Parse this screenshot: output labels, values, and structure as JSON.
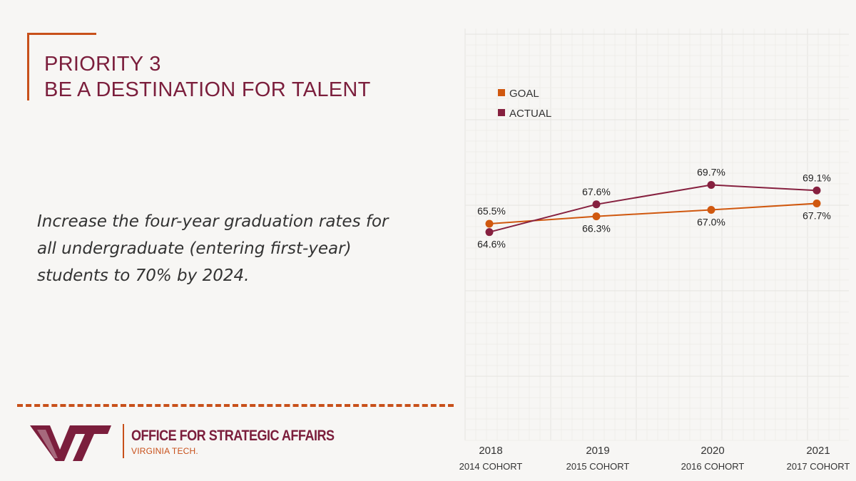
{
  "header": {
    "priority": "PRIORITY 3",
    "subtitle": "BE A DESTINATION FOR TALENT"
  },
  "goal_statement": "Increase the four-year graduation rates for all undergraduate (entering first-year) students to 70% by 2024.",
  "footer": {
    "office": "OFFICE FOR STRATEGIC AFFAIRS",
    "org": "VIRGINIA TECH."
  },
  "colors": {
    "maroon": "#7b1e3c",
    "orange": "#c8501a",
    "actual_line": "#86203f",
    "goal_line": "#d0580f"
  },
  "chart_data": {
    "type": "line",
    "title": "",
    "xlabel": "",
    "ylabel": "",
    "categories": [
      "2018",
      "2019",
      "2020",
      "2021"
    ],
    "sublabels": [
      "2014 COHORT",
      "2015 COHORT",
      "2016 COHORT",
      "2017 COHORT"
    ],
    "ylim": [
      60,
      72
    ],
    "grid": true,
    "legend": "top-left",
    "series": [
      {
        "name": "GOAL",
        "values": [
          65.5,
          66.3,
          67.0,
          67.7
        ],
        "labels": [
          "65.5%",
          "66.3%",
          "67.0%",
          "67.7%"
        ],
        "label_side": [
          "above",
          "below",
          "below",
          "below"
        ]
      },
      {
        "name": "ACTUAL",
        "values": [
          64.6,
          67.6,
          69.7,
          69.1
        ],
        "labels": [
          "64.6%",
          "67.6%",
          "69.7%",
          "69.1%"
        ],
        "label_side": [
          "below",
          "above",
          "above",
          "above"
        ]
      }
    ]
  }
}
